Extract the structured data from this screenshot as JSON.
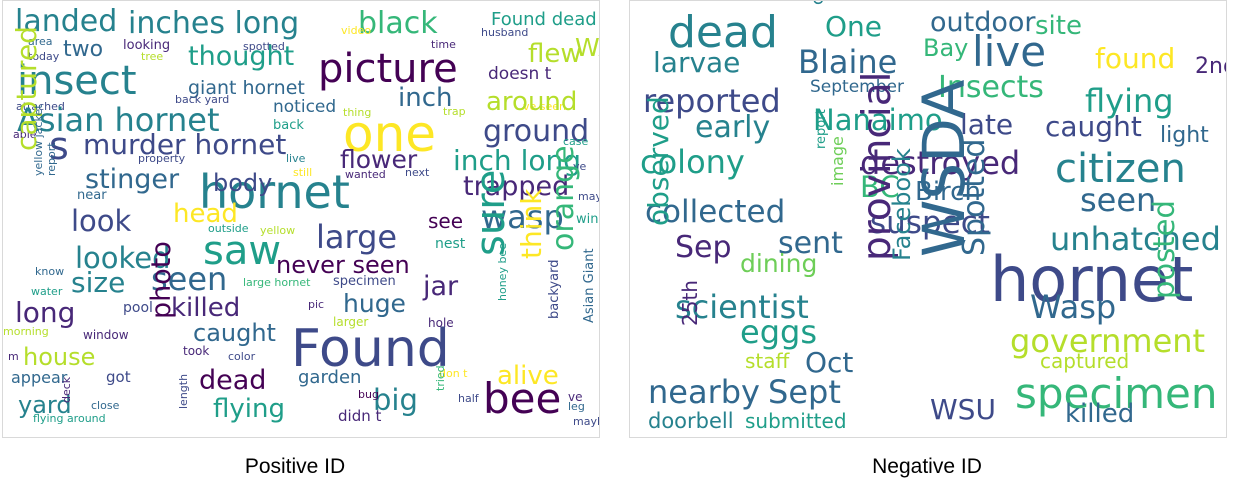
{
  "colors": [
    "#440154",
    "#482878",
    "#3e4a89",
    "#31688e",
    "#26828e",
    "#1f9e89",
    "#35b779",
    "#6ece58",
    "#b5de2b",
    "#fde725"
  ],
  "positive": {
    "caption": "Positive ID",
    "words": [
      {
        "t": "landed",
        "c": 4
      },
      {
        "t": "inches long",
        "c": 4
      },
      {
        "t": "black",
        "c": 6
      },
      {
        "t": "Found dead",
        "c": 5
      },
      {
        "t": "two",
        "c": 3
      },
      {
        "t": "looking",
        "c": 1
      },
      {
        "t": "spotted",
        "c": 2
      },
      {
        "t": "video",
        "c": 9
      },
      {
        "t": "time",
        "c": 1
      },
      {
        "t": "husband",
        "c": 2
      },
      {
        "t": "area",
        "c": 3
      },
      {
        "t": "today",
        "c": 2
      },
      {
        "t": "tree",
        "c": 8
      },
      {
        "t": "thought",
        "c": 5
      },
      {
        "t": "picture",
        "c": 0
      },
      {
        "t": "flew",
        "c": 8
      },
      {
        "t": "WA",
        "c": 8
      },
      {
        "t": "insect",
        "c": 4
      },
      {
        "t": "giant hornet",
        "c": 3
      },
      {
        "t": "doesn t",
        "c": 1
      },
      {
        "t": "attached",
        "c": 2
      },
      {
        "t": "back yard",
        "c": 2
      },
      {
        "t": "ve seen",
        "c": 9
      },
      {
        "t": "Asian hornet",
        "c": 4
      },
      {
        "t": "inch",
        "c": 3
      },
      {
        "t": "around",
        "c": 8
      },
      {
        "t": "noticed",
        "c": 3
      },
      {
        "t": "thing",
        "c": 8
      },
      {
        "t": "trap",
        "c": 8
      },
      {
        "t": "one",
        "c": 9
      },
      {
        "t": "able",
        "c": 1
      },
      {
        "t": "back",
        "c": 5
      },
      {
        "t": "ground",
        "c": 2
      },
      {
        "t": "case",
        "c": 5
      },
      {
        "t": "murder hornet",
        "c": 2
      },
      {
        "t": "s",
        "c": 2
      },
      {
        "t": "property",
        "c": 2
      },
      {
        "t": "live",
        "c": 4
      },
      {
        "t": "flower",
        "c": 1
      },
      {
        "t": "inch long",
        "c": 5
      },
      {
        "t": "still",
        "c": 9
      },
      {
        "t": "wanted",
        "c": 1
      },
      {
        "t": "next",
        "c": 2
      },
      {
        "t": "hornet",
        "c": 4
      },
      {
        "t": "stinger",
        "c": 3
      },
      {
        "t": "trapped",
        "c": 1
      },
      {
        "t": "body",
        "c": 2
      },
      {
        "t": "ve",
        "c": 2
      },
      {
        "t": "captured",
        "c": 8
      },
      {
        "t": "yellow jacket",
        "c": 3
      },
      {
        "t": "report",
        "c": 3
      },
      {
        "t": "near",
        "c": 3
      },
      {
        "t": "head",
        "c": 9
      },
      {
        "t": "see",
        "c": 0
      },
      {
        "t": "wasp",
        "c": 3
      },
      {
        "t": "may",
        "c": 2
      },
      {
        "t": "wing",
        "c": 5
      },
      {
        "t": "look",
        "c": 2
      },
      {
        "t": "outside",
        "c": 5
      },
      {
        "t": "yellow",
        "c": 8
      },
      {
        "t": "large",
        "c": 2
      },
      {
        "t": "saw",
        "c": 5
      },
      {
        "t": "nest",
        "c": 5
      },
      {
        "t": "looked",
        "c": 4
      },
      {
        "t": "never seen",
        "c": 0
      },
      {
        "t": "know",
        "c": 3
      },
      {
        "t": "size",
        "c": 4
      },
      {
        "t": "seen",
        "c": 3
      },
      {
        "t": "large hornet",
        "c": 6
      },
      {
        "t": "specimen",
        "c": 2
      },
      {
        "t": "jar",
        "c": 1
      },
      {
        "t": "sure",
        "c": 5
      },
      {
        "t": "think",
        "c": 9
      },
      {
        "t": "orange",
        "c": 6
      },
      {
        "t": "honey bee",
        "c": 5
      },
      {
        "t": "backyard",
        "c": 2
      },
      {
        "t": "Asian Giant",
        "c": 3
      },
      {
        "t": "water",
        "c": 5
      },
      {
        "t": "long",
        "c": 1
      },
      {
        "t": "pool",
        "c": 2
      },
      {
        "t": "killed",
        "c": 1
      },
      {
        "t": "huge",
        "c": 3
      },
      {
        "t": "pic",
        "c": 1
      },
      {
        "t": "morning",
        "c": 8
      },
      {
        "t": "window",
        "c": 1
      },
      {
        "t": "photo",
        "c": 0
      },
      {
        "t": "caught",
        "c": 3
      },
      {
        "t": "larger",
        "c": 8
      },
      {
        "t": "hole",
        "c": 1
      },
      {
        "t": "m",
        "c": 1
      },
      {
        "t": "house",
        "c": 8
      },
      {
        "t": "took",
        "c": 1
      },
      {
        "t": "color",
        "c": 2
      },
      {
        "t": "Found",
        "c": 2
      },
      {
        "t": "appear",
        "c": 3
      },
      {
        "t": "got",
        "c": 2
      },
      {
        "t": "dead",
        "c": 0
      },
      {
        "t": "garden",
        "c": 3
      },
      {
        "t": "alive",
        "c": 9
      },
      {
        "t": "yard",
        "c": 4
      },
      {
        "t": "deck",
        "c": 1
      },
      {
        "t": "close",
        "c": 3
      },
      {
        "t": "length",
        "c": 2
      },
      {
        "t": "flying",
        "c": 5
      },
      {
        "t": "big",
        "c": 4
      },
      {
        "t": "don t",
        "c": 9
      },
      {
        "t": "bug",
        "c": 0
      },
      {
        "t": "bee",
        "c": 0
      },
      {
        "t": "flying around",
        "c": 5
      },
      {
        "t": "didn t",
        "c": 1
      },
      {
        "t": "tried",
        "c": 6
      },
      {
        "t": "half",
        "c": 2
      },
      {
        "t": "ve",
        "c": 1
      },
      {
        "t": "leg",
        "c": 3
      },
      {
        "t": "maybe",
        "c": 2
      }
    ]
  },
  "negative": {
    "caption": "Negative ID",
    "words": [
      {
        "t": "dead",
        "c": 4
      },
      {
        "t": "cam",
        "c": 4
      },
      {
        "t": "One",
        "c": 5
      },
      {
        "t": "outdoor",
        "c": 3
      },
      {
        "t": "site",
        "c": 6
      },
      {
        "t": "live",
        "c": 3
      },
      {
        "t": "Bay",
        "c": 6
      },
      {
        "t": "found",
        "c": 9
      },
      {
        "t": "larvae",
        "c": 4
      },
      {
        "t": "Blaine",
        "c": 3
      },
      {
        "t": "2nd",
        "c": 1
      },
      {
        "t": "September",
        "c": 3
      },
      {
        "t": "Insects",
        "c": 6
      },
      {
        "t": "reported",
        "c": 2
      },
      {
        "t": "flying",
        "c": 5
      },
      {
        "t": "early",
        "c": 4
      },
      {
        "t": "Nanaimo",
        "c": 5
      },
      {
        "t": "late",
        "c": 2
      },
      {
        "t": "caught",
        "c": 2
      },
      {
        "t": "light",
        "c": 3
      },
      {
        "t": "colony",
        "c": 5
      },
      {
        "t": "report",
        "c": 5
      },
      {
        "t": "destroyed",
        "c": 1
      },
      {
        "t": "citizen",
        "c": 4
      },
      {
        "t": "image",
        "c": 7
      },
      {
        "t": "BC",
        "c": 6
      },
      {
        "t": "Birch",
        "c": 3
      },
      {
        "t": "seen",
        "c": 3
      },
      {
        "t": "collected",
        "c": 3
      },
      {
        "t": "suspect",
        "c": 2
      },
      {
        "t": "observed",
        "c": 5
      },
      {
        "t": "sent",
        "c": 3
      },
      {
        "t": "unhatched",
        "c": 4
      },
      {
        "t": "Sep",
        "c": 1
      },
      {
        "t": "dining",
        "c": 7
      },
      {
        "t": "provincial",
        "c": 1
      },
      {
        "t": "hornet",
        "c": 2
      },
      {
        "t": "scientist",
        "c": 4
      },
      {
        "t": "Facebook",
        "c": 4
      },
      {
        "t": "WSDA",
        "c": 3
      },
      {
        "t": "Spotted",
        "c": 3
      },
      {
        "t": "Wasp",
        "c": 3
      },
      {
        "t": "eggs",
        "c": 5
      },
      {
        "t": "25th",
        "c": 1
      },
      {
        "t": "government",
        "c": 8
      },
      {
        "t": "posted",
        "c": 6
      },
      {
        "t": "Oct",
        "c": 3
      },
      {
        "t": "staff",
        "c": 8
      },
      {
        "t": "captured",
        "c": 8
      },
      {
        "t": "nearby",
        "c": 3
      },
      {
        "t": "Sept",
        "c": 3
      },
      {
        "t": "specimen",
        "c": 6
      },
      {
        "t": "WSU",
        "c": 2
      },
      {
        "t": "doorbell",
        "c": 4
      },
      {
        "t": "submitted",
        "c": 5
      },
      {
        "t": "killed",
        "c": 3
      }
    ]
  }
}
